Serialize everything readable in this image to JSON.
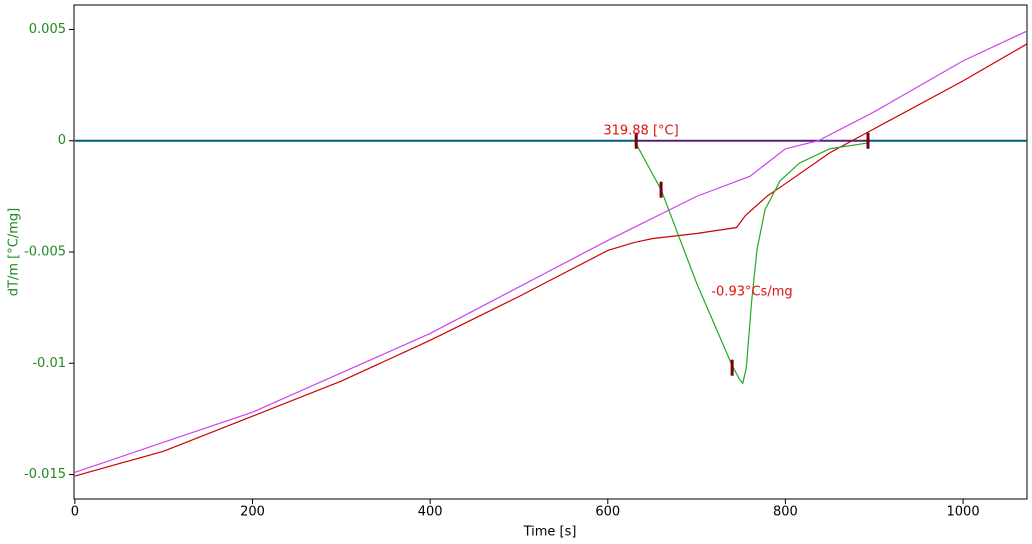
{
  "chart_data": {
    "type": "line",
    "xlabel": "Time [s]",
    "ylabel": "dT/m  [°C/mg]",
    "xlim": [
      -1,
      1072
    ],
    "xticks": [
      0,
      200,
      400,
      600,
      800,
      1000
    ],
    "ylim": [
      -0.0161,
      0.0061
    ],
    "yticks": [
      0.005,
      0,
      -0.005,
      -0.01,
      -0.015
    ],
    "ytick_color": "#228b22",
    "series": [
      {
        "color": "#005a8c",
        "x": [
          0,
          1072
        ],
        "values": [
          0,
          0
        ]
      },
      {
        "color": "#800080",
        "x": [
          630,
          893
        ],
        "values": [
          0,
          0
        ]
      },
      {
        "color": "#cc44ee",
        "x": [
          0,
          200,
          400,
          600,
          700,
          760,
          800,
          837,
          900,
          1000,
          1072
        ],
        "values": [
          -0.0149,
          -0.0122,
          -0.00866,
          -0.00448,
          -0.0025,
          -0.0016,
          -0.00036,
          0,
          0.0013,
          0.00359,
          0.00493
        ]
      },
      {
        "color": "#cc0000",
        "x": [
          0,
          100,
          200,
          300,
          400,
          500,
          600,
          630,
          650,
          700,
          745,
          755,
          780,
          800,
          850,
          900,
          1000,
          1072
        ],
        "values": [
          -0.01507,
          -0.01395,
          -0.01238,
          -0.0108,
          -0.00897,
          -0.007,
          -0.00493,
          -0.00457,
          -0.0044,
          -0.00417,
          -0.0039,
          -0.00336,
          -0.00247,
          -0.00193,
          -0.00054,
          0.00054,
          0.00269,
          0.00435
        ]
      },
      {
        "color": "#22aa22",
        "x": [
          630,
          660,
          700,
          740,
          748,
          752,
          756,
          762,
          768,
          777,
          794,
          816,
          850,
          893
        ],
        "values": [
          0,
          -0.0022,
          -0.0064,
          -0.0101,
          -0.0107,
          -0.0109,
          -0.0102,
          -0.0072,
          -0.0049,
          -0.0031,
          -0.0018,
          -0.001,
          -0.00036,
          -0.0001
        ]
      }
    ],
    "markers": {
      "color": "#7a0010",
      "x": [
        632,
        660,
        740,
        893
      ],
      "values": [
        0,
        -0.0022,
        -0.0102,
        0
      ]
    },
    "annotations": [
      {
        "text": "319.88 [°C]",
        "color": "#dd1111"
      },
      {
        "text": "-0.93°Cs/mg",
        "color": "#dd1111"
      }
    ]
  }
}
